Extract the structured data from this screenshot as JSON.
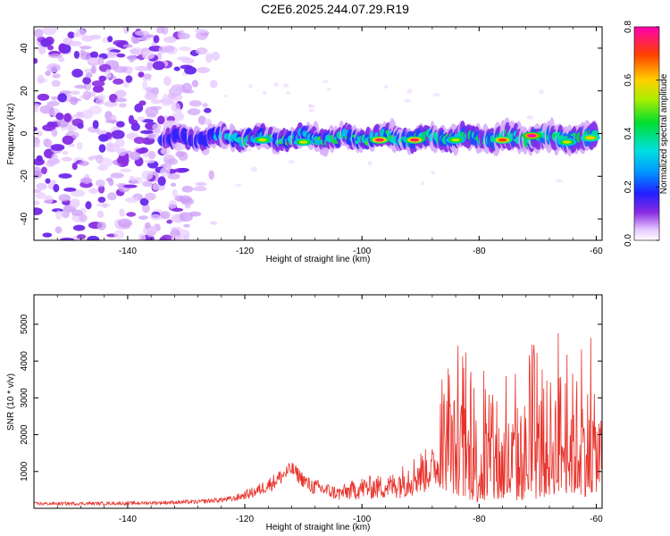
{
  "title": "C2E6.2025.244.07.29.R19",
  "chart_data": [
    {
      "type": "heatmap",
      "name": "spectrogram",
      "xlabel": "Height of straight line (km)",
      "ylabel": "Frequency (Hz)",
      "xlim": [
        -156,
        -59
      ],
      "ylim": [
        -50,
        50
      ],
      "xticks": [
        -140,
        -120,
        -100,
        -80,
        -60
      ],
      "yticks": [
        -40,
        -20,
        0,
        20,
        40
      ],
      "colorbar": {
        "label": "Normalized spectral amplitude",
        "range": [
          0.0,
          0.8
        ],
        "ticks": [
          "0.0",
          "0.2",
          "0.4",
          "0.6",
          "0.8"
        ]
      },
      "features": [
        {
          "region": "broadband noise",
          "x_range": [
            -156,
            -134
          ],
          "freq_range": [
            -50,
            50
          ],
          "amplitude": 0.1
        },
        {
          "region": "fading noise",
          "x_range": [
            -134,
            -125
          ],
          "freq_range": [
            -50,
            50
          ],
          "amplitude": 0.05
        },
        {
          "region": "carrier band",
          "x_range": [
            -134,
            -60
          ],
          "freq_center": -2,
          "freq_width": 12,
          "amplitude_range": [
            0.15,
            0.8
          ]
        }
      ],
      "hotspots": [
        {
          "x": -117,
          "freq": -3,
          "amplitude": 0.55
        },
        {
          "x": -110,
          "freq": -4,
          "amplitude": 0.55
        },
        {
          "x": -97,
          "freq": -3,
          "amplitude": 0.75
        },
        {
          "x": -91,
          "freq": -3,
          "amplitude": 0.75
        },
        {
          "x": -84,
          "freq": -3,
          "amplitude": 0.55
        },
        {
          "x": -76,
          "freq": -3,
          "amplitude": 0.7
        },
        {
          "x": -71,
          "freq": -1,
          "amplitude": 0.8
        },
        {
          "x": -65,
          "freq": -4,
          "amplitude": 0.55
        },
        {
          "x": -61,
          "freq": -2,
          "amplitude": 0.6
        }
      ]
    },
    {
      "type": "line",
      "name": "snr",
      "xlabel": "Height of straight line (km)",
      "ylabel": "SNR (10 * v/v)",
      "xlim": [
        -156,
        -59
      ],
      "ylim": [
        0,
        5800
      ],
      "xticks": [
        -140,
        -120,
        -100,
        -80,
        -60
      ],
      "yticks": [
        1000,
        2000,
        3000,
        4000,
        5000
      ],
      "color": "#e8312a",
      "envelope": [
        {
          "x": -156,
          "base": 120,
          "amp": 90
        },
        {
          "x": -140,
          "base": 130,
          "amp": 90
        },
        {
          "x": -128,
          "base": 170,
          "amp": 110
        },
        {
          "x": -122,
          "base": 250,
          "amp": 160
        },
        {
          "x": -118,
          "base": 450,
          "amp": 320
        },
        {
          "x": -115,
          "base": 700,
          "amp": 450
        },
        {
          "x": -112,
          "base": 1050,
          "amp": 420
        },
        {
          "x": -109,
          "base": 600,
          "amp": 450
        },
        {
          "x": -104,
          "base": 380,
          "amp": 400
        },
        {
          "x": -100,
          "base": 520,
          "amp": 620
        },
        {
          "x": -95,
          "base": 560,
          "amp": 700
        },
        {
          "x": -90,
          "base": 900,
          "amp": 1250
        },
        {
          "x": -87,
          "base": 1100,
          "amp": 1100
        },
        {
          "x": -86,
          "base": 1800,
          "amp": 2900
        },
        {
          "x": -80,
          "base": 1300,
          "amp": 2600
        },
        {
          "x": -75,
          "base": 1300,
          "amp": 2500
        },
        {
          "x": -70,
          "base": 1600,
          "amp": 3000
        },
        {
          "x": -66,
          "base": 2000,
          "amp": 3500
        },
        {
          "x": -62,
          "base": 1800,
          "amp": 3300
        },
        {
          "x": -59,
          "base": 1500,
          "amp": 2200
        }
      ]
    }
  ]
}
